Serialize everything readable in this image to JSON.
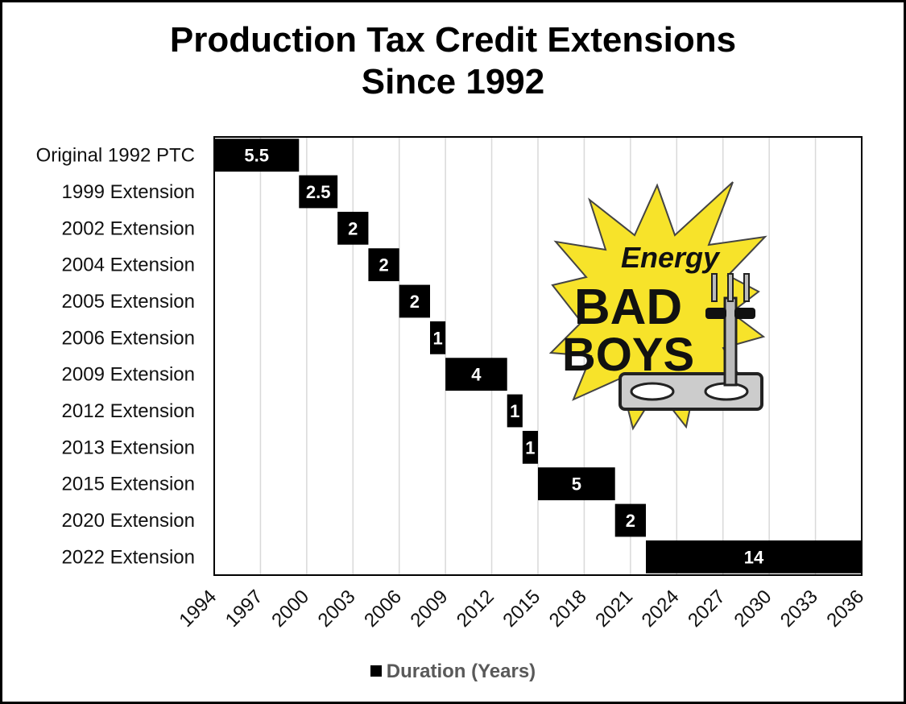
{
  "chart_data": {
    "type": "bar",
    "orientation": "horizontal-stacked-timeline",
    "title": [
      "Production Tax Credit Extensions",
      "Since 1992"
    ],
    "categories": [
      "Original 1992 PTC",
      "1999 Extension",
      "2002 Extension",
      "2004 Extension",
      "2005 Extension",
      "2006 Extension",
      "2009 Extension",
      "2012 Extension",
      "2013 Extension",
      "2015 Extension",
      "2020 Extension",
      "2022 Extension"
    ],
    "start": [
      1994,
      1999.5,
      2002,
      2004,
      2006,
      2008,
      2009,
      2013,
      2014,
      2015,
      2020,
      2022
    ],
    "series": [
      {
        "name": "Duration (Years)",
        "values": [
          5.5,
          2.5,
          2,
          2,
          2,
          1,
          4,
          1,
          1,
          5,
          2,
          14
        ],
        "color": "#000000"
      }
    ],
    "data_labels": [
      "5.5",
      "2.5",
      "2",
      "2",
      "2",
      "1",
      "4",
      "1",
      "1",
      "5",
      "2",
      "14"
    ],
    "xlim": [
      1994,
      2036
    ],
    "xticks": [
      1994,
      1997,
      2000,
      2003,
      2006,
      2009,
      2012,
      2015,
      2018,
      2021,
      2024,
      2027,
      2030,
      2033,
      2036
    ],
    "grid": "vertical",
    "legend": "bottom",
    "gridline_color": "#d9d9d9"
  },
  "logo": {
    "name": "Energy Bad Boys logo",
    "text_top": "Energy",
    "text_middle": "BAD",
    "text_bottom": "BOYS",
    "burst_color": "#f7e32a"
  }
}
